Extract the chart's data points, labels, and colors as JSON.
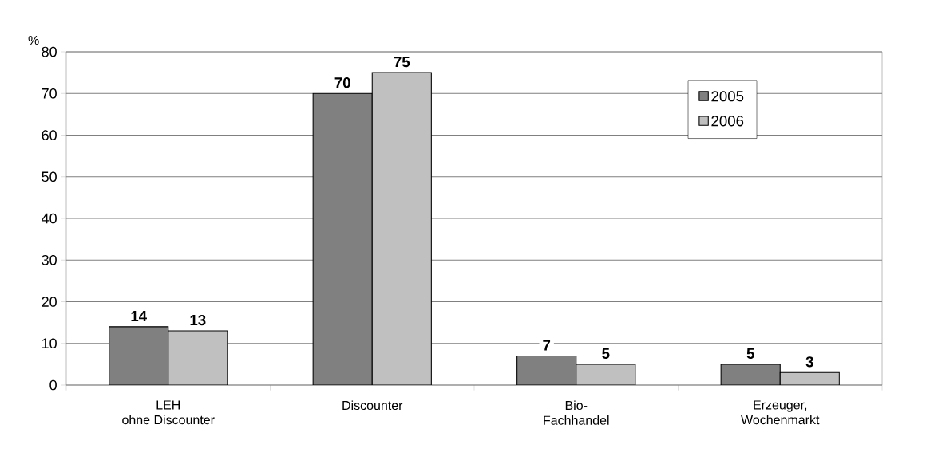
{
  "chart_data": {
    "type": "bar",
    "ylabel": "%",
    "categories": [
      "LEH\nohne Discounter",
      "Discounter",
      "Bio-\nFachhandel",
      "Erzeuger,\nWochenmarkt"
    ],
    "series": [
      {
        "name": "2005",
        "color": "#808080",
        "values": [
          14,
          70,
          7,
          5
        ]
      },
      {
        "name": "2006",
        "color": "#c0c0c0",
        "values": [
          13,
          75,
          5,
          3
        ]
      }
    ],
    "ylim": [
      0,
      80
    ],
    "yticks": [
      0,
      10,
      20,
      30,
      40,
      50,
      60,
      70,
      80
    ],
    "grid": "y",
    "legend": "top right",
    "data_labels": true
  }
}
